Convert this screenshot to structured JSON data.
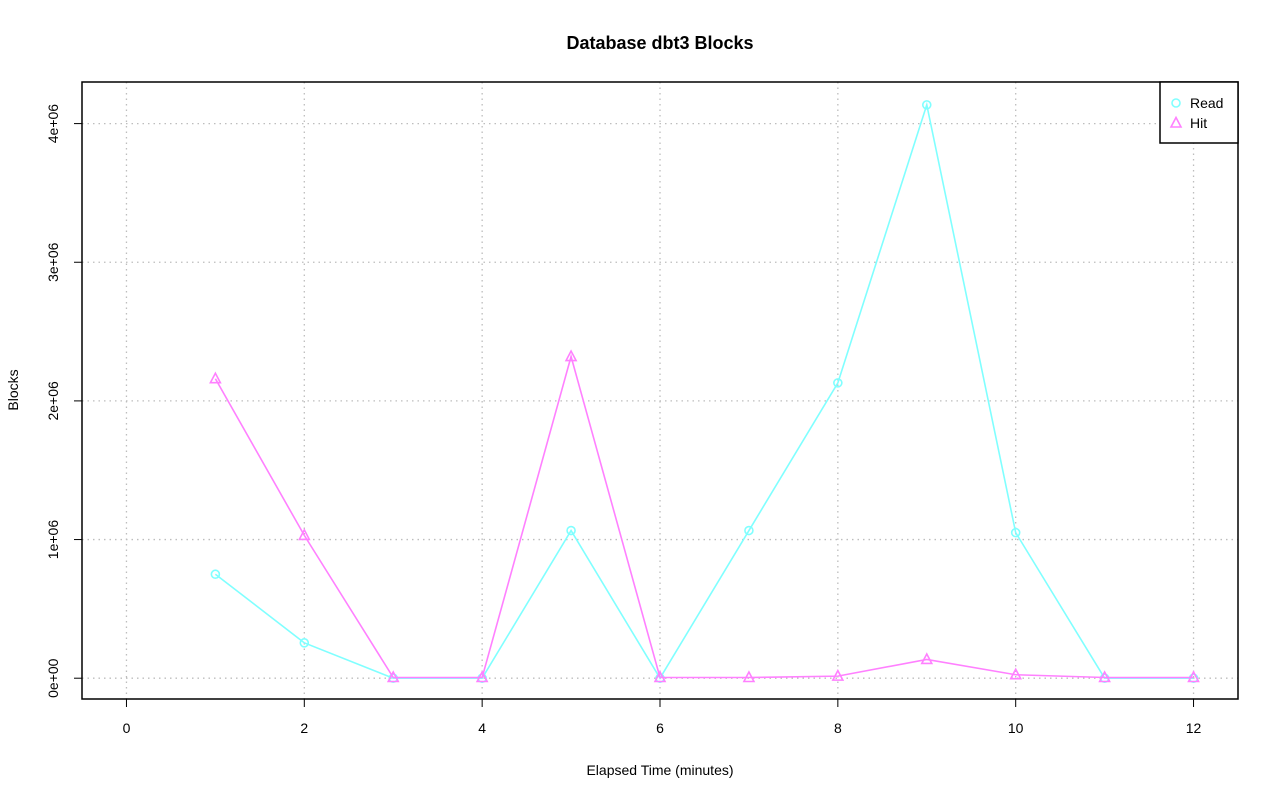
{
  "chart_data": {
    "type": "line",
    "title": "Database dbt3 Blocks",
    "xlabel": "Elapsed Time (minutes)",
    "ylabel": "Blocks",
    "xlim": [
      -0.5,
      12.5
    ],
    "ylim": [
      -150000,
      4300000
    ],
    "x_ticks": [
      0,
      2,
      4,
      6,
      8,
      10,
      12
    ],
    "x_tick_labels": [
      "0",
      "2",
      "4",
      "6",
      "8",
      "10",
      "12"
    ],
    "y_ticks": [
      0,
      1000000,
      2000000,
      3000000,
      4000000
    ],
    "y_tick_labels": [
      "0e+00",
      "1e+06",
      "2e+06",
      "3e+06",
      "4e+06"
    ],
    "grid": true,
    "legend_position": "top-right",
    "x": [
      1,
      2,
      3,
      4,
      5,
      6,
      7,
      8,
      9,
      10,
      11,
      12
    ],
    "series": [
      {
        "name": "Read",
        "color": "#80ffff",
        "marker": "circle",
        "values": [
          750000,
          255000,
          0,
          0,
          1065000,
          0,
          1065000,
          2130000,
          4135000,
          1050000,
          0,
          0
        ]
      },
      {
        "name": "Hit",
        "color": "#ff80ff",
        "marker": "triangle",
        "values": [
          2160000,
          1030000,
          5000,
          5000,
          2320000,
          5000,
          5000,
          15000,
          135000,
          25000,
          5000,
          5000
        ]
      }
    ]
  }
}
